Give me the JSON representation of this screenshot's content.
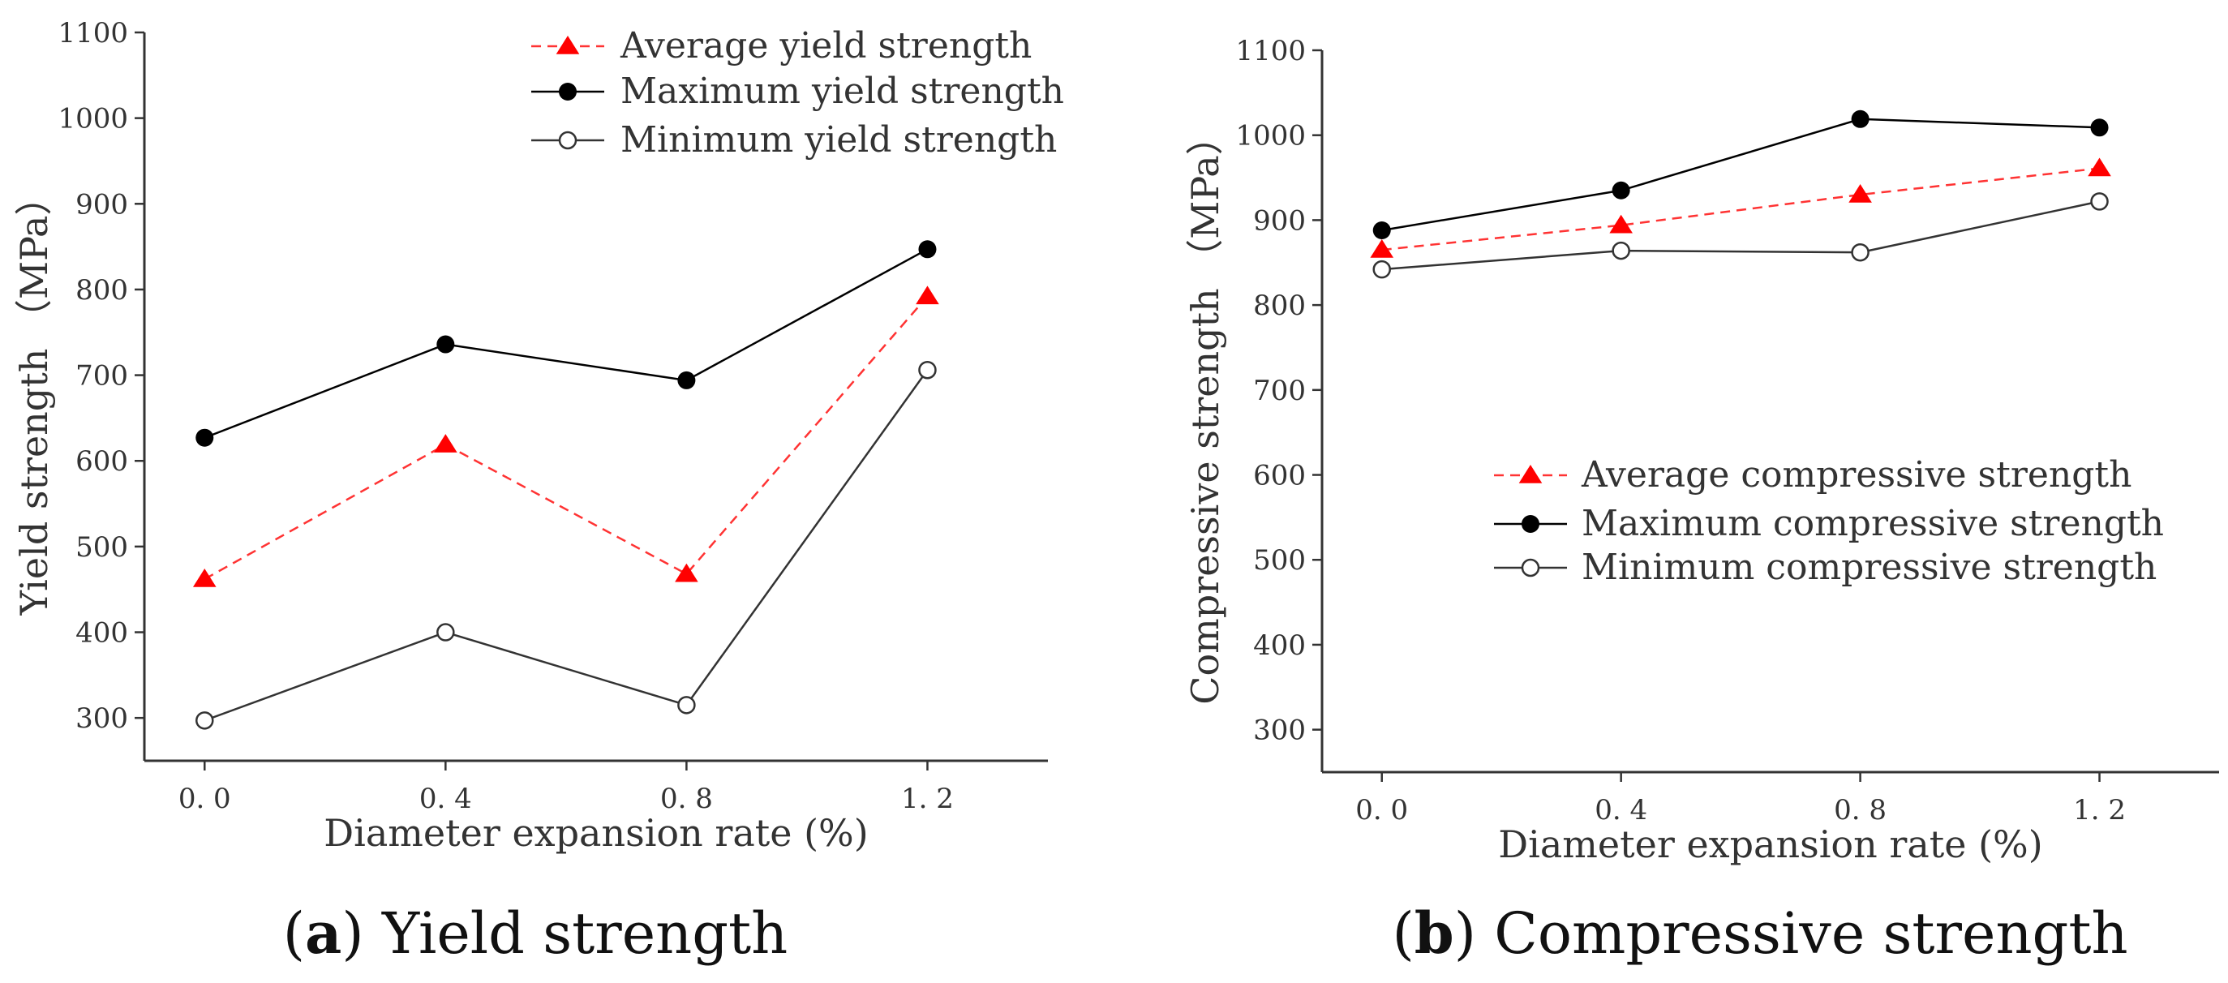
{
  "chart_data": [
    {
      "type": "line",
      "caption": {
        "letter": "a",
        "text": "Yield strength"
      },
      "xlabel": "Diameter expansion rate (%)",
      "ylabel": "Yield strength （MPa）",
      "x": [
        0.0,
        0.4,
        0.8,
        1.2
      ],
      "x_tick_labels": [
        "0. 0",
        "0. 4",
        "0. 8",
        "1. 2"
      ],
      "xlim": [
        -0.1,
        1.4
      ],
      "ylim": [
        250,
        1100
      ],
      "y_ticks": [
        300,
        400,
        500,
        600,
        700,
        800,
        900,
        1000,
        1100
      ],
      "legend_position": "top-right",
      "series": [
        {
          "name": "Average yield strength",
          "values": [
            462,
            619,
            468,
            792
          ],
          "color": "#ff3333",
          "marker": "triangle",
          "line_style": "dashed"
        },
        {
          "name": "Maximum yield strength",
          "values": [
            627,
            736,
            694,
            847
          ],
          "color": "#000000",
          "marker": "filled-circle",
          "line_style": "solid"
        },
        {
          "name": "Minimum yield strength",
          "values": [
            297,
            400,
            315,
            706
          ],
          "color": "#333333",
          "marker": "open-circle",
          "line_style": "solid"
        }
      ]
    },
    {
      "type": "line",
      "caption": {
        "letter": "b",
        "text": "Compressive strength"
      },
      "xlabel": "Diameter expansion rate (%)",
      "ylabel": "Compressive strength （MPa）",
      "x": [
        0.0,
        0.4,
        0.8,
        1.2
      ],
      "x_tick_labels": [
        "0. 0",
        "0. 4",
        "0. 8",
        "1. 2"
      ],
      "xlim": [
        -0.1,
        1.4
      ],
      "ylim": [
        250,
        1100
      ],
      "y_ticks": [
        300,
        400,
        500,
        600,
        700,
        800,
        900,
        1000,
        1100
      ],
      "legend_position": "center-right",
      "series": [
        {
          "name": "Average compressive strength",
          "values": [
            865,
            894,
            930,
            961
          ],
          "color": "#ff3333",
          "marker": "triangle",
          "line_style": "dashed"
        },
        {
          "name": "Maximum compressive strength",
          "values": [
            888,
            935,
            1019,
            1009
          ],
          "color": "#000000",
          "marker": "filled-circle",
          "line_style": "solid"
        },
        {
          "name": "Minimum compressive strength",
          "values": [
            842,
            864,
            862,
            922
          ],
          "color": "#333333",
          "marker": "open-circle",
          "line_style": "solid"
        }
      ]
    }
  ]
}
